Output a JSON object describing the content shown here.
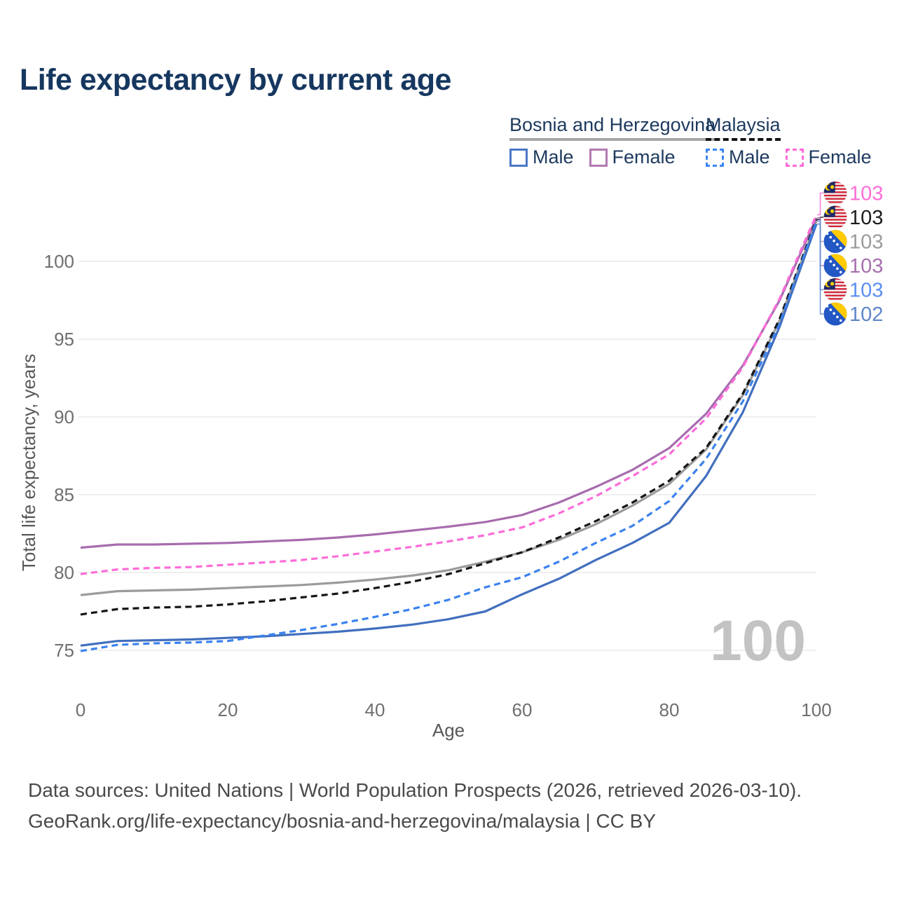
{
  "title": "Life expectancy by current age",
  "legend": {
    "bosnia": {
      "label": "Bosnia and Herzegovina",
      "male_label": "Male",
      "female_label": "Female",
      "line_style": "solid",
      "header_line_color": "#a6a6a6",
      "male_color": "#4a78c5",
      "female_color": "#b279b2"
    },
    "malaysia": {
      "label": "Malaysia",
      "male_label": "Male",
      "female_label": "Female",
      "line_style": "dashed",
      "header_line_color": "#141414",
      "male_color": "#3d87f5",
      "female_color": "#fb6ad9"
    }
  },
  "chart_data": {
    "type": "line",
    "title": "Life expectancy by current age",
    "xlabel": "Age",
    "ylabel": "Total life expectancy, years",
    "x_ticks": [
      0,
      20,
      40,
      60,
      80,
      100
    ],
    "y_ticks": [
      75,
      80,
      85,
      90,
      95,
      100
    ],
    "xlim": [
      0,
      100
    ],
    "ylim": [
      73.5,
      105
    ],
    "grid": "horizontal-only",
    "legend_position": "top-right",
    "x": [
      0,
      5,
      10,
      15,
      20,
      25,
      30,
      35,
      40,
      45,
      50,
      55,
      60,
      65,
      70,
      75,
      80,
      85,
      90,
      95,
      100
    ],
    "series": [
      {
        "key": "bih-total",
        "name": "Bosnia and Herzegovina — Total",
        "country": "Bosnia and Herzegovina",
        "sex": "Both sexes",
        "color": "#9b9b9b",
        "dashed": false,
        "values": [
          78.55,
          78.8,
          78.85,
          78.9,
          79.0,
          79.1,
          79.2,
          79.35,
          79.55,
          79.8,
          80.15,
          80.7,
          81.3,
          82.1,
          83.1,
          84.3,
          85.7,
          87.9,
          91.4,
          96.2,
          102.6
        ]
      },
      {
        "key": "bih-female",
        "name": "Bosnia and Herzegovina — Female",
        "country": "Bosnia and Herzegovina",
        "sex": "Female",
        "color": "#a76cae",
        "dashed": false,
        "values": [
          81.6,
          81.8,
          81.8,
          81.85,
          81.9,
          82.0,
          82.1,
          82.25,
          82.45,
          82.7,
          82.95,
          83.25,
          83.7,
          84.5,
          85.5,
          86.6,
          88.0,
          90.2,
          93.3,
          97.5,
          102.8
        ]
      },
      {
        "key": "bih-male",
        "name": "Bosnia and Herzegovina — Male",
        "country": "Bosnia and Herzegovina",
        "sex": "Male",
        "color": "#426fbe",
        "dashed": false,
        "values": [
          75.3,
          75.6,
          75.65,
          75.7,
          75.8,
          75.9,
          76.05,
          76.2,
          76.4,
          76.65,
          77.0,
          77.5,
          78.6,
          79.6,
          80.8,
          81.9,
          83.2,
          86.2,
          90.3,
          95.8,
          102.4
        ]
      },
      {
        "key": "mys-total",
        "name": "Malaysia — Total",
        "country": "Malaysia",
        "sex": "Both sexes",
        "color": "#151515",
        "dashed": true,
        "values": [
          77.3,
          77.65,
          77.75,
          77.8,
          77.95,
          78.15,
          78.4,
          78.65,
          79.0,
          79.4,
          79.9,
          80.6,
          81.3,
          82.25,
          83.3,
          84.5,
          85.9,
          88.0,
          91.5,
          96.3,
          102.7
        ]
      },
      {
        "key": "mys-female",
        "name": "Malaysia — Female",
        "country": "Malaysia",
        "sex": "Female",
        "color": "#fc6cd8",
        "dashed": true,
        "values": [
          79.9,
          80.2,
          80.3,
          80.35,
          80.5,
          80.65,
          80.8,
          81.05,
          81.35,
          81.65,
          82.0,
          82.4,
          82.9,
          83.8,
          84.9,
          86.2,
          87.6,
          89.9,
          93.2,
          97.6,
          103.0
        ]
      },
      {
        "key": "mys-male",
        "name": "Malaysia — Male",
        "country": "Malaysia",
        "sex": "Male",
        "color": "#3b82ee",
        "dashed": true,
        "values": [
          74.95,
          75.35,
          75.45,
          75.5,
          75.6,
          75.95,
          76.3,
          76.7,
          77.15,
          77.65,
          78.25,
          79.05,
          79.7,
          80.7,
          81.9,
          83.0,
          84.6,
          87.3,
          91.0,
          96.0,
          102.6
        ]
      }
    ],
    "end_labels": [
      {
        "value": "103",
        "flag": "malaysia",
        "series_key": "mys-female",
        "color": "#fd6fd8"
      },
      {
        "value": "103",
        "flag": "malaysia",
        "series_key": "mys-total",
        "color": "#1c1c1c"
      },
      {
        "value": "103",
        "flag": "bosnia",
        "series_key": "bih-total",
        "color": "#9b9b9b"
      },
      {
        "value": "103",
        "flag": "bosnia",
        "series_key": "bih-female",
        "color": "#a76fae"
      },
      {
        "value": "103",
        "flag": "malaysia",
        "series_key": "mys-male",
        "color": "#5b8ff2"
      },
      {
        "value": "102",
        "flag": "bosnia",
        "series_key": "bih-male",
        "color": "#5f87c9"
      }
    ]
  },
  "watermark": "100",
  "footer": {
    "line1": "Data sources: United Nations | World Population Prospects (2026, retrieved 2026-03-10).",
    "line2": "GeoRank.org/life-expectancy/bosnia-and-herzegovina/malaysia | CC BY"
  }
}
